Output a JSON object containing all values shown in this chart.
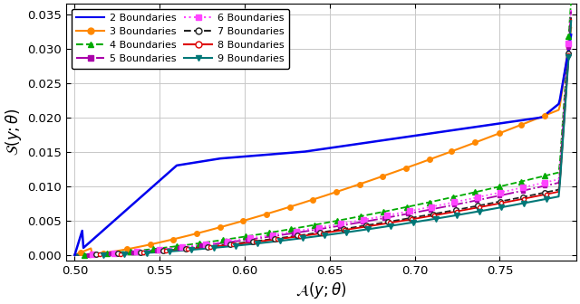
{
  "title": "",
  "xlabel": "$\\mathcal{A}(y;\\theta)$",
  "ylabel": "$\\mathcal{S}(y;\\theta)$",
  "xlim": [
    0.495,
    0.795
  ],
  "ylim": [
    -0.0008,
    0.0365
  ],
  "yticks": [
    0.0,
    0.005,
    0.01,
    0.015,
    0.02,
    0.025,
    0.03,
    0.035
  ],
  "xticks": [
    0.5,
    0.55,
    0.6,
    0.65,
    0.7,
    0.75
  ],
  "background_color": "#ffffff",
  "grid_color": "#c8c8c8",
  "series": [
    {
      "label": "2 Boundaries",
      "color": "#0000ee",
      "linestyle": "-",
      "marker": null,
      "markersize": 0,
      "lw": 1.8
    },
    {
      "label": "3 Boundaries",
      "color": "#ff8800",
      "linestyle": "-",
      "marker": "o",
      "markersize": 4,
      "lw": 1.5
    },
    {
      "label": "4 Boundaries",
      "color": "#00aa00",
      "linestyle": "--",
      "marker": "^",
      "markersize": 4,
      "lw": 1.3
    },
    {
      "label": "5 Boundaries",
      "color": "#aa00aa",
      "linestyle": "-.",
      "marker": "s",
      "markersize": 3,
      "lw": 1.3
    },
    {
      "label": "6 Boundaries",
      "color": "#ff44ff",
      "linestyle": ":",
      "marker": "s",
      "markersize": 4,
      "lw": 1.3
    },
    {
      "label": "7 Boundaries",
      "color": "#222222",
      "linestyle": "--",
      "marker": "o",
      "markersize": 4,
      "lw": 1.3
    },
    {
      "label": "8 Boundaries",
      "color": "#dd0000",
      "linestyle": "-",
      "marker": "o",
      "markersize": 3,
      "lw": 1.3
    },
    {
      "label": "9 Boundaries",
      "color": "#007777",
      "linestyle": "-",
      "marker": "v",
      "markersize": 4,
      "lw": 1.5
    }
  ],
  "figsize": [
    6.4,
    3.36
  ],
  "dpi": 100
}
